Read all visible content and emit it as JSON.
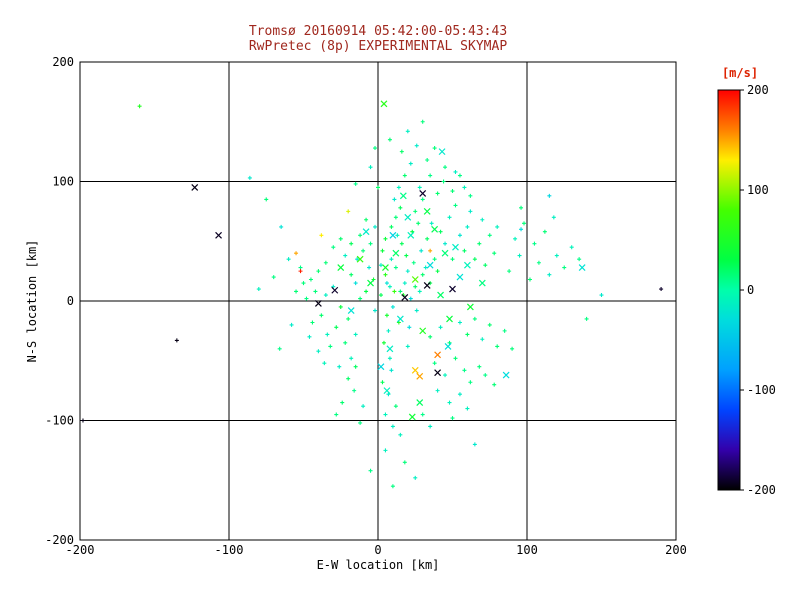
{
  "title": {
    "line1": "Tromsø 20160914 05:42:00-05:43:43",
    "line2": "RwPretec (8p) EXPERIMENTAL SKYMAP"
  },
  "colors": {
    "background": "#ffffff",
    "title_text": "#a0281e",
    "axis": "#000000",
    "grid": "#000000",
    "colorbar_label_text": "#dd2200"
  },
  "chart_data": {
    "type": "scatter",
    "title_line1": "Tromsø 20160914 05:42:00-05:43:43",
    "title_line2": "RwPretec (8p) EXPERIMENTAL SKYMAP",
    "xlabel": "E-W location [km]",
    "ylabel": "N-S location [km]",
    "xlim": [
      -200,
      200
    ],
    "ylim": [
      -200,
      200
    ],
    "x_ticks": [
      -200,
      -100,
      0,
      100,
      200
    ],
    "y_ticks": [
      -200,
      -100,
      0,
      100,
      200
    ],
    "grid": true,
    "grid_positions": [
      -100,
      0,
      100
    ],
    "colorbar": {
      "label": "[m/s]",
      "ticks": [
        200,
        100,
        0,
        -100,
        -200
      ],
      "range": [
        -200,
        200
      ],
      "stops": [
        {
          "v": 200,
          "c": "#ff0000"
        },
        {
          "v": 160,
          "c": "#ff8000"
        },
        {
          "v": 130,
          "c": "#ffee00"
        },
        {
          "v": 80,
          "c": "#44ff00"
        },
        {
          "v": 30,
          "c": "#00ff44"
        },
        {
          "v": 0,
          "c": "#00ffaa"
        },
        {
          "v": -30,
          "c": "#00dddd"
        },
        {
          "v": -80,
          "c": "#00a0ff"
        },
        {
          "v": -120,
          "c": "#0044ff"
        },
        {
          "v": -160,
          "c": "#3300aa"
        },
        {
          "v": -200,
          "c": "#000000"
        }
      ]
    },
    "points": [
      [
        2,
        5,
        25
      ],
      [
        8,
        12,
        -10
      ],
      [
        -3,
        18,
        40
      ],
      [
        15,
        8,
        15
      ],
      [
        10,
        -5,
        -25
      ],
      [
        5,
        22,
        60
      ],
      [
        18,
        15,
        -15
      ],
      [
        -8,
        8,
        30
      ],
      [
        12,
        28,
        10
      ],
      [
        22,
        2,
        -30
      ],
      [
        6,
        -12,
        45
      ],
      [
        -2,
        -8,
        -20
      ],
      [
        25,
        12,
        20
      ],
      [
        9,
        35,
        -12
      ],
      [
        14,
        -18,
        55
      ],
      [
        -12,
        2,
        15
      ],
      [
        20,
        25,
        -18
      ],
      [
        3,
        42,
        35
      ],
      [
        28,
        8,
        -8
      ],
      [
        16,
        48,
        25
      ],
      [
        -6,
        28,
        -22
      ],
      [
        11,
        8,
        70
      ],
      [
        24,
        32,
        12
      ],
      [
        7,
        -25,
        -15
      ],
      [
        19,
        38,
        28
      ],
      [
        -15,
        15,
        -28
      ],
      [
        30,
        22,
        18
      ],
      [
        13,
        55,
        -10
      ],
      [
        4,
        -35,
        42
      ],
      [
        26,
        -8,
        -18
      ],
      [
        9,
        62,
        22
      ],
      [
        -10,
        42,
        15
      ],
      [
        21,
        -22,
        -32
      ],
      [
        35,
        15,
        28
      ],
      [
        2,
        30,
        -14
      ],
      [
        17,
        5,
        48
      ],
      [
        -18,
        22,
        20
      ],
      [
        29,
        42,
        -22
      ],
      [
        12,
        70,
        15
      ],
      [
        6,
        15,
        -26
      ],
      [
        23,
        58,
        32
      ],
      [
        -5,
        48,
        12
      ],
      [
        32,
        28,
        -16
      ],
      [
        15,
        78,
        24
      ],
      [
        8,
        -48,
        -12
      ],
      [
        27,
        65,
        18
      ],
      [
        -14,
        35,
        -24
      ],
      [
        38,
        35,
        14
      ],
      [
        11,
        85,
        -20
      ],
      [
        5,
        52,
        36
      ],
      [
        20,
        -38,
        -14
      ],
      [
        33,
        52,
        22
      ],
      [
        -2,
        62,
        -18
      ],
      [
        25,
        75,
        16
      ],
      [
        14,
        95,
        -12
      ],
      [
        40,
        25,
        30
      ],
      [
        9,
        -58,
        -22
      ],
      [
        30,
        85,
        12
      ],
      [
        -8,
        68,
        20
      ],
      [
        36,
        65,
        -15
      ],
      [
        18,
        105,
        18
      ],
      [
        45,
        48,
        -20
      ],
      [
        3,
        -68,
        25
      ],
      [
        28,
        95,
        -10
      ],
      [
        -12,
        55,
        14
      ],
      [
        42,
        58,
        22
      ],
      [
        22,
        115,
        -16
      ],
      [
        50,
        35,
        15
      ],
      [
        7,
        -78,
        -18
      ],
      [
        35,
        105,
        10
      ],
      [
        -18,
        48,
        24
      ],
      [
        48,
        70,
        -12
      ],
      [
        16,
        125,
        20
      ],
      [
        55,
        55,
        -22
      ],
      [
        12,
        -88,
        15
      ],
      [
        40,
        90,
        18
      ],
      [
        -22,
        38,
        -14
      ],
      [
        52,
        80,
        12
      ],
      [
        26,
        130,
        -18
      ],
      [
        58,
        42,
        20
      ],
      [
        5,
        -95,
        -10
      ],
      [
        44,
        100,
        14
      ],
      [
        -25,
        52,
        18
      ],
      [
        60,
        62,
        -16
      ],
      [
        33,
        118,
        12
      ],
      [
        65,
        35,
        22
      ],
      [
        10,
        -105,
        -14
      ],
      [
        50,
        92,
        16
      ],
      [
        -30,
        45,
        12
      ],
      [
        62,
        75,
        -18
      ],
      [
        38,
        128,
        14
      ],
      [
        68,
        48,
        18
      ],
      [
        15,
        -112,
        -12
      ],
      [
        55,
        105,
        10
      ],
      [
        -35,
        32,
        16
      ],
      [
        70,
        68,
        -14
      ],
      [
        45,
        112,
        12
      ],
      [
        72,
        30,
        20
      ],
      [
        58,
        95,
        -10
      ],
      [
        -40,
        25,
        18
      ],
      [
        75,
        55,
        12
      ],
      [
        52,
        108,
        -14
      ],
      [
        78,
        40,
        16
      ],
      [
        62,
        88,
        10
      ],
      [
        -45,
        18,
        14
      ],
      [
        80,
        62,
        -12
      ],
      [
        -20,
        -15,
        20
      ],
      [
        -15,
        -28,
        -12
      ],
      [
        -25,
        -5,
        35
      ],
      [
        -30,
        12,
        -18
      ],
      [
        -22,
        -35,
        15
      ],
      [
        -18,
        -48,
        -10
      ],
      [
        -28,
        -22,
        25
      ],
      [
        -35,
        5,
        -14
      ],
      [
        -32,
        -38,
        12
      ],
      [
        -38,
        -12,
        18
      ],
      [
        -26,
        -55,
        -16
      ],
      [
        -42,
        8,
        14
      ],
      [
        -20,
        -65,
        20
      ],
      [
        -34,
        -28,
        -12
      ],
      [
        -44,
        -18,
        16
      ],
      [
        -16,
        -75,
        10
      ],
      [
        -40,
        -42,
        -14
      ],
      [
        -48,
        2,
        12
      ],
      [
        -24,
        -85,
        18
      ],
      [
        -36,
        -52,
        -10
      ],
      [
        -50,
        15,
        14
      ],
      [
        -28,
        -95,
        12
      ],
      [
        -46,
        -30,
        -16
      ],
      [
        -52,
        28,
        10
      ],
      [
        -15,
        -55,
        22
      ],
      [
        -10,
        -88,
        -14
      ],
      [
        -55,
        8,
        16
      ],
      [
        -12,
        -102,
        12
      ],
      [
        35,
        -30,
        18
      ],
      [
        42,
        -22,
        -12
      ],
      [
        48,
        -35,
        14
      ],
      [
        55,
        -18,
        -16
      ],
      [
        38,
        -52,
        12
      ],
      [
        60,
        -28,
        20
      ],
      [
        45,
        -62,
        -10
      ],
      [
        65,
        -15,
        14
      ],
      [
        52,
        -48,
        16
      ],
      [
        70,
        -32,
        -12
      ],
      [
        58,
        -58,
        10
      ],
      [
        75,
        -20,
        18
      ],
      [
        40,
        -75,
        -14
      ],
      [
        62,
        -68,
        12
      ],
      [
        80,
        -38,
        16
      ],
      [
        48,
        -85,
        -10
      ],
      [
        68,
        -55,
        14
      ],
      [
        85,
        -25,
        12
      ],
      [
        55,
        -78,
        -16
      ],
      [
        72,
        -62,
        10
      ],
      [
        90,
        -40,
        14
      ],
      [
        60,
        -90,
        -12
      ],
      [
        78,
        -70,
        16
      ],
      [
        30,
        -95,
        10
      ],
      [
        35,
        -105,
        -14
      ],
      [
        50,
        -98,
        12
      ],
      [
        88,
        25,
        14
      ],
      [
        95,
        38,
        -12
      ],
      [
        102,
        18,
        16
      ],
      [
        92,
        52,
        -10
      ],
      [
        108,
        32,
        12
      ],
      [
        98,
        65,
        14
      ],
      [
        115,
        22,
        -16
      ],
      [
        105,
        48,
        10
      ],
      [
        120,
        38,
        -12
      ],
      [
        112,
        58,
        16
      ],
      [
        125,
        28,
        12
      ],
      [
        130,
        45,
        -10
      ],
      [
        96,
        78,
        14
      ],
      [
        118,
        70,
        -14
      ],
      [
        135,
        35,
        10
      ],
      [
        0,
        95,
        20
      ],
      [
        -5,
        112,
        -12
      ],
      [
        8,
        135,
        16
      ],
      [
        -15,
        98,
        10
      ],
      [
        20,
        142,
        -14
      ],
      [
        -2,
        128,
        12
      ],
      [
        30,
        150,
        14
      ],
      [
        -160,
        163,
        55
      ],
      [
        -86,
        103,
        -20
      ],
      [
        -75,
        85,
        15
      ],
      [
        -65,
        62,
        -25
      ],
      [
        -135,
        -33,
        -195
      ],
      [
        190,
        10,
        -190
      ],
      [
        -198,
        -100,
        -195
      ],
      [
        150,
        5,
        -20
      ],
      [
        140,
        -15,
        12
      ],
      [
        96,
        60,
        -30
      ],
      [
        115,
        88,
        -35
      ],
      [
        -60,
        35,
        -15
      ],
      [
        -70,
        20,
        12
      ],
      [
        -58,
        -20,
        -18
      ],
      [
        -66,
        -40,
        10
      ],
      [
        -80,
        10,
        -12
      ],
      [
        -55,
        40,
        150
      ],
      [
        -38,
        55,
        130
      ],
      [
        -52,
        25,
        190
      ],
      [
        -20,
        75,
        120
      ],
      [
        35,
        42,
        150
      ],
      [
        5,
        -125,
        -12
      ],
      [
        18,
        -135,
        14
      ],
      [
        -5,
        -142,
        10
      ],
      [
        25,
        -148,
        -14
      ],
      [
        10,
        -155,
        12
      ],
      [
        65,
        -120,
        -20
      ]
    ],
    "x_points": [
      [
        -123,
        95,
        -195
      ],
      [
        -107,
        55,
        -192
      ],
      [
        30,
        90,
        -190
      ],
      [
        -40,
        -2,
        -195
      ],
      [
        -29,
        9,
        -190
      ],
      [
        33,
        13,
        -195
      ],
      [
        50,
        10,
        -190
      ],
      [
        18,
        3,
        -193
      ],
      [
        40,
        -60,
        -195
      ],
      [
        4,
        165,
        60
      ],
      [
        43,
        125,
        -20
      ],
      [
        28,
        -63,
        150
      ],
      [
        25,
        -58,
        140
      ],
      [
        40,
        -45,
        160
      ],
      [
        23,
        -97,
        40
      ],
      [
        137,
        28,
        -25
      ],
      [
        86,
        -62,
        -30
      ],
      [
        12,
        40,
        20
      ],
      [
        22,
        55,
        -10
      ],
      [
        5,
        28,
        45
      ],
      [
        35,
        30,
        -30
      ],
      [
        -5,
        15,
        30
      ],
      [
        15,
        -15,
        -20
      ],
      [
        30,
        -25,
        55
      ],
      [
        8,
        -40,
        -15
      ],
      [
        45,
        40,
        15
      ],
      [
        55,
        20,
        -25
      ],
      [
        -12,
        35,
        70
      ],
      [
        20,
        70,
        -15
      ],
      [
        38,
        60,
        25
      ],
      [
        2,
        -55,
        -35
      ],
      [
        48,
        -15,
        35
      ],
      [
        60,
        30,
        -10
      ],
      [
        25,
        18,
        85
      ],
      [
        -18,
        -8,
        -25
      ],
      [
        42,
        5,
        20
      ],
      [
        10,
        55,
        -40
      ],
      [
        33,
        75,
        30
      ],
      [
        52,
        45,
        -15
      ],
      [
        17,
        88,
        10
      ],
      [
        47,
        -38,
        -28
      ],
      [
        62,
        -5,
        40
      ],
      [
        6,
        -75,
        -12
      ],
      [
        28,
        -85,
        22
      ],
      [
        -8,
        58,
        -18
      ],
      [
        70,
        15,
        12
      ],
      [
        -25,
        28,
        35
      ]
    ]
  }
}
